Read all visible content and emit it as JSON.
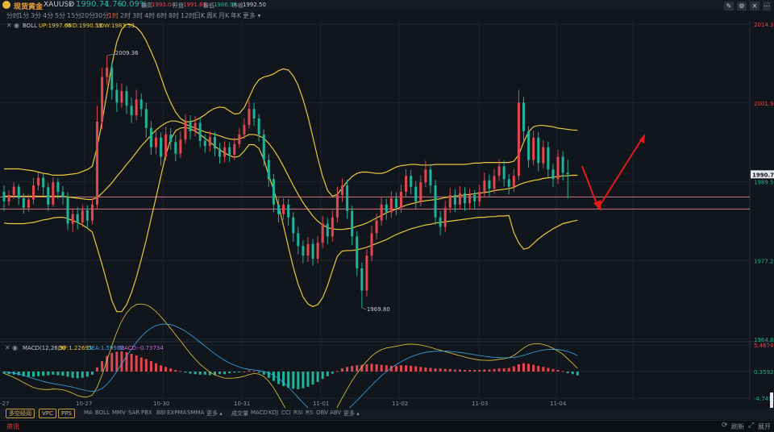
{
  "header": {
    "symbol_name": "现货黄金",
    "symbol_code": "XAUUSD",
    "price": "1990.74",
    "change": "-1.76",
    "change_pct": "-0.09%",
    "high_label": "最高",
    "high": "1993.04",
    "open_label": "开盘",
    "open": "1991.69",
    "low_label": "最低",
    "low": "1986.94",
    "prev_close_label": "昨收",
    "prev_close": "1992.50"
  },
  "timeframes": [
    "分时",
    "1分",
    "3分",
    "4分",
    "5分",
    "15分",
    "20分",
    "30分",
    "1时",
    "2时",
    "3时",
    "4时",
    "6时",
    "8时",
    "12时",
    "日K",
    "周K",
    "月K",
    "年K",
    "更多"
  ],
  "active_timeframe": "1时",
  "boll_legend": {
    "name": "BOLL",
    "up": "UP:1997.65",
    "mid": "MID:1990.59",
    "low": "LOW:1983.53"
  },
  "macd_legend": {
    "name": "MACD(12,26,9)",
    "dif": "DIF:1.22695",
    "dea": "DEA:1.59562",
    "macd": "MACD:-0.73734"
  },
  "indicator_buttons": [
    "MA",
    "BOLL",
    "MMV",
    "SAR",
    "PBX",
    "BBI",
    "EXPMA",
    "SMMA",
    "更多"
  ],
  "sub_indicator_buttons": [
    "成交量",
    "MACD",
    "KDJ",
    "CCI",
    "RSI",
    "RS",
    "OBV",
    "ABV",
    "更多"
  ],
  "pills": [
    "多空经阅",
    "VPC",
    "PPS"
  ],
  "status_left": "资讯",
  "status_right": [
    "刷新",
    "展开"
  ],
  "colors": {
    "up": "#e2474f",
    "down": "#1fb39a",
    "boll": "#e9c93a",
    "accent": "#f05a3c",
    "hline": "#c9787f"
  },
  "chart_data": {
    "type": "candlestick",
    "price_axis_labels": [
      "2014.30",
      "2001.94",
      "1989.58",
      "1977.22",
      "1964.86"
    ],
    "current_price_tag": "1990.74",
    "ylim": [
      1964.86,
      2014.3
    ],
    "x_tick_labels": [
      "10-27",
      "10-30",
      "10-31",
      "11-01",
      "11-02",
      "11-03",
      "11-04"
    ],
    "x_tick_first_partial": "-27",
    "annotations": [
      {
        "text": "2009.36",
        "value": 2009.36
      },
      {
        "text": "1969.80",
        "value": 1969.8
      }
    ],
    "horizontal_levels": [
      1987.2,
      1985.3
    ],
    "macd_axis_labels": [
      "5.46748",
      "0.35920",
      "-4.7490"
    ],
    "candles": [
      [
        1988.0,
        1986.5,
        1989.0,
        1985.0
      ],
      [
        1986.5,
        1987.5,
        1988.2,
        1985.8
      ],
      [
        1987.5,
        1988.8,
        1989.5,
        1986.9
      ],
      [
        1988.8,
        1987.0,
        1989.2,
        1986.0
      ],
      [
        1987.0,
        1985.5,
        1987.8,
        1984.6
      ],
      [
        1985.5,
        1986.8,
        1987.6,
        1984.9
      ],
      [
        1986.8,
        1989.0,
        1990.2,
        1986.0
      ],
      [
        1989.0,
        1990.2,
        1991.0,
        1988.2
      ],
      [
        1990.2,
        1988.7,
        1990.9,
        1987.5
      ],
      [
        1988.7,
        1986.0,
        1989.4,
        1985.0
      ],
      [
        1986.0,
        1989.5,
        1990.3,
        1985.6
      ],
      [
        1989.5,
        1988.0,
        1990.1,
        1986.9
      ],
      [
        1988.0,
        1987.2,
        1988.9,
        1986.0
      ],
      [
        1987.2,
        1983.0,
        1987.9,
        1982.0
      ],
      [
        1983.0,
        1984.5,
        1985.4,
        1981.7
      ],
      [
        1984.5,
        1983.2,
        1985.6,
        1982.1
      ],
      [
        1983.2,
        1985.1,
        1986.0,
        1982.5
      ],
      [
        1985.1,
        1983.5,
        1985.9,
        1982.3
      ],
      [
        1983.5,
        1986.0,
        1987.0,
        1982.9
      ],
      [
        1986.0,
        1999.0,
        2001.5,
        1985.2
      ],
      [
        1999.0,
        2006.0,
        2007.5,
        1997.8
      ],
      [
        2006.0,
        2007.5,
        2009.36,
        2004.8
      ],
      [
        2007.5,
        2004.0,
        2008.2,
        2002.5
      ],
      [
        2004.0,
        2002.0,
        2005.1,
        2000.5
      ],
      [
        2002.0,
        2003.8,
        2005.0,
        2001.2
      ],
      [
        2003.8,
        2001.5,
        2004.6,
        2000.2
      ],
      [
        2001.5,
        2000.0,
        2002.8,
        1998.8
      ],
      [
        2000.0,
        2002.5,
        2004.0,
        1999.2
      ],
      [
        2002.5,
        2001.0,
        2003.4,
        1999.8
      ],
      [
        2001.0,
        1998.0,
        2002.0,
        1996.5
      ],
      [
        1998.0,
        1995.0,
        1999.1,
        1993.8
      ],
      [
        1995.0,
        1996.5,
        1997.8,
        1993.9
      ],
      [
        1996.5,
        1993.5,
        1997.3,
        1992.1
      ],
      [
        1993.5,
        1997.0,
        1998.2,
        1992.9
      ],
      [
        1997.0,
        1995.8,
        1998.0,
        1994.6
      ],
      [
        1995.8,
        1994.0,
        1996.9,
        1992.8
      ],
      [
        1994.0,
        1996.2,
        1997.5,
        1993.3
      ],
      [
        1996.2,
        1999.0,
        2000.2,
        1995.5
      ],
      [
        1999.0,
        1997.5,
        2000.0,
        1996.2
      ],
      [
        1997.5,
        1998.8,
        1999.9,
        1996.7
      ],
      [
        1998.8,
        1996.0,
        1999.6,
        1995.0
      ],
      [
        1996.0,
        1995.2,
        1997.0,
        1994.1
      ],
      [
        1995.2,
        1996.6,
        1997.5,
        1994.3
      ],
      [
        1996.6,
        1994.8,
        1997.4,
        1993.6
      ],
      [
        1994.8,
        1993.5,
        1995.7,
        1992.4
      ],
      [
        1993.5,
        1995.0,
        1995.9,
        1992.6
      ],
      [
        1995.0,
        1993.8,
        1995.8,
        1992.7
      ],
      [
        1993.8,
        1995.5,
        1996.5,
        1993.0
      ],
      [
        1995.5,
        1997.0,
        1998.0,
        1994.9
      ],
      [
        1997.0,
        1998.5,
        1999.6,
        1996.3
      ],
      [
        1998.5,
        2001.0,
        2002.3,
        1997.9
      ],
      [
        2001.0,
        1999.5,
        2002.0,
        1998.3
      ],
      [
        1999.5,
        1997.0,
        2000.2,
        1995.9
      ],
      [
        1997.0,
        1993.0,
        1997.8,
        1992.0
      ],
      [
        1993.0,
        1990.0,
        1993.9,
        1988.8
      ],
      [
        1990.0,
        1986.0,
        1990.8,
        1984.8
      ],
      [
        1986.0,
        1984.5,
        1987.0,
        1983.2
      ],
      [
        1984.5,
        1986.0,
        1987.0,
        1983.6
      ],
      [
        1986.0,
        1984.0,
        1986.9,
        1982.7
      ],
      [
        1984.0,
        1981.5,
        1984.8,
        1980.2
      ],
      [
        1981.5,
        1979.5,
        1982.5,
        1978.2
      ],
      [
        1979.5,
        1978.0,
        1980.4,
        1976.8
      ],
      [
        1978.0,
        1979.8,
        1980.9,
        1977.0
      ],
      [
        1979.8,
        1977.5,
        1980.6,
        1976.4
      ],
      [
        1977.5,
        1980.0,
        1981.1,
        1976.8
      ],
      [
        1980.0,
        1983.0,
        1984.2,
        1979.2
      ],
      [
        1983.0,
        1981.0,
        1983.9,
        1979.8
      ],
      [
        1981.0,
        1984.0,
        1985.1,
        1980.2
      ],
      [
        1984.0,
        1987.5,
        1988.8,
        1983.2
      ],
      [
        1987.5,
        1989.0,
        1990.1,
        1986.4
      ],
      [
        1989.0,
        1985.0,
        1989.9,
        1983.8
      ],
      [
        1985.0,
        1981.0,
        1985.8,
        1979.6
      ],
      [
        1981.0,
        1976.0,
        1981.8,
        1974.8
      ],
      [
        1976.0,
        1972.5,
        1976.9,
        1969.8
      ],
      [
        1972.5,
        1978.0,
        1979.0,
        1971.6
      ],
      [
        1978.0,
        1981.5,
        1982.7,
        1977.1
      ],
      [
        1981.5,
        1983.5,
        1984.6,
        1980.5
      ],
      [
        1983.5,
        1986.0,
        1987.1,
        1982.7
      ],
      [
        1986.0,
        1984.8,
        1986.9,
        1983.6
      ],
      [
        1984.8,
        1987.0,
        1988.1,
        1983.9
      ],
      [
        1987.0,
        1985.5,
        1987.9,
        1984.3
      ],
      [
        1985.5,
        1988.0,
        1989.1,
        1984.7
      ],
      [
        1988.0,
        1990.5,
        1991.6,
        1987.2
      ],
      [
        1990.5,
        1988.8,
        1991.4,
        1987.6
      ],
      [
        1988.8,
        1986.5,
        1989.7,
        1985.3
      ],
      [
        1986.5,
        1989.5,
        1990.6,
        1985.7
      ],
      [
        1989.5,
        1991.5,
        1992.9,
        1988.7
      ],
      [
        1991.5,
        1989.0,
        1992.4,
        1987.8
      ],
      [
        1989.0,
        1984.0,
        1989.9,
        1982.8
      ],
      [
        1984.0,
        1982.5,
        1985.0,
        1981.2
      ],
      [
        1982.5,
        1985.5,
        1986.6,
        1981.7
      ],
      [
        1985.5,
        1987.5,
        1988.6,
        1984.7
      ],
      [
        1987.5,
        1986.0,
        1988.4,
        1984.8
      ],
      [
        1986.0,
        1987.8,
        1988.9,
        1985.2
      ],
      [
        1987.8,
        1986.2,
        1988.7,
        1985.0
      ],
      [
        1986.2,
        1987.5,
        1988.5,
        1985.4
      ],
      [
        1987.5,
        1986.5,
        1988.3,
        1985.3
      ],
      [
        1986.5,
        1988.0,
        1989.1,
        1985.7
      ],
      [
        1988.0,
        1989.8,
        1991.0,
        1987.2
      ],
      [
        1989.8,
        1988.5,
        1990.7,
        1987.3
      ],
      [
        1988.5,
        1990.5,
        1991.6,
        1987.7
      ],
      [
        1990.5,
        1992.0,
        1993.1,
        1989.7
      ],
      [
        1992.0,
        1990.0,
        1992.9,
        1988.8
      ],
      [
        1990.0,
        1988.8,
        1990.8,
        1987.6
      ],
      [
        1988.8,
        1990.5,
        1991.6,
        1988.0
      ],
      [
        1990.5,
        2002.0,
        2004.0,
        1989.8
      ],
      [
        2002.0,
        1997.5,
        2002.9,
        1995.9
      ],
      [
        1997.5,
        1993.0,
        1998.3,
        1991.8
      ],
      [
        1993.0,
        1996.5,
        1997.6,
        1992.2
      ],
      [
        1996.5,
        1992.5,
        1997.4,
        1991.2
      ],
      [
        1992.5,
        1995.0,
        1996.1,
        1991.7
      ],
      [
        1995.0,
        1991.5,
        1995.9,
        1990.3
      ],
      [
        1991.5,
        1990.0,
        1992.4,
        1988.8
      ],
      [
        1990.0,
        1993.5,
        1994.6,
        1989.2
      ],
      [
        1993.5,
        1991.0,
        1994.4,
        1989.8
      ],
      [
        1991.0,
        1990.74,
        1993.04,
        1986.94
      ]
    ],
    "boll_upper": [
      1991.6,
      1991.6,
      1991.6,
      1991.6,
      1991.5,
      1991.4,
      1991.3,
      1991.1,
      1990.9,
      1990.8,
      1990.6,
      1990.6,
      1990.6,
      1990.7,
      1990.8,
      1990.9,
      1991.2,
      1991.5,
      1992.0,
      1995.0,
      1999.0,
      2003.5,
      2008.0,
      2011.5,
      2013.5,
      2014.3,
      2014.2,
      2013.8,
      2013.0,
      2011.7,
      2010.0,
      2008.2,
      2006.0,
      2003.8,
      2002.0,
      2000.5,
      1999.5,
      1999.0,
      1999.0,
      1999.2,
      1999.6,
      2000.1,
      2000.7,
      2001.1,
      2001.3,
      2001.2,
      2000.7,
      2000.2,
      2000.3,
      2001.2,
      2002.8,
      2004.5,
      2005.6,
      2006.0,
      2006.2,
      2006.5,
      2007.0,
      2007.3,
      2007.1,
      2006.2,
      2004.7,
      2002.5,
      1999.8,
      1996.6,
      1993.3,
      1990.4,
      1988.2,
      1987.3,
      1987.6,
      1988.6,
      1989.6,
      1990.4,
      1990.9,
      1991.1,
      1991.1,
      1991.0,
      1990.9,
      1990.9,
      1991.1,
      1991.5,
      1991.9,
      1992.1,
      1992.2,
      1992.3,
      1992.3,
      1992.2,
      1992.2,
      1992.2,
      1992.3,
      1992.3,
      1992.3,
      1992.3,
      1992.3,
      1992.3,
      1992.3,
      1992.4,
      1992.5,
      1992.5,
      1992.6,
      1992.6,
      1992.6,
      1992.6,
      1992.6,
      1992.6,
      1992.8,
      1993.8,
      1995.8,
      1997.4,
      1998.2,
      1998.4,
      1998.4,
      1998.3,
      1998.2,
      1998.0,
      1997.9,
      1997.8,
      1997.7,
      1997.65
    ],
    "boll_middle": [
      1987.3,
      1987.3,
      1987.3,
      1987.3,
      1987.3,
      1987.3,
      1987.3,
      1987.3,
      1987.3,
      1987.3,
      1987.3,
      1987.3,
      1987.3,
      1987.2,
      1987.1,
      1987.0,
      1986.9,
      1986.8,
      1986.8,
      1987.1,
      1987.8,
      1988.6,
      1989.4,
      1990.4,
      1991.3,
      1992.3,
      1993.2,
      1994.2,
      1995.2,
      1996.0,
      1996.9,
      1997.7,
      1998.3,
      1998.8,
      1999.1,
      1999.1,
      1998.9,
      1998.6,
      1998.3,
      1998.0,
      1997.7,
      1997.4,
      1997.2,
      1997.0,
      1996.8,
      1996.5,
      1996.3,
      1996.2,
      1996.3,
      1996.6,
      1997.0,
      1997.0,
      1996.8,
      1996.4,
      1995.6,
      1994.6,
      1993.4,
      1992.0,
      1990.5,
      1989.0,
      1987.6,
      1986.3,
      1985.2,
      1984.2,
      1983.4,
      1982.8,
      1982.4,
      1982.2,
      1982.1,
      1982.1,
      1982.2,
      1982.3,
      1982.6,
      1982.8,
      1983.1,
      1983.5,
      1983.9,
      1984.3,
      1984.7,
      1985.0,
      1985.3,
      1985.6,
      1985.9,
      1986.1,
      1986.3,
      1986.5,
      1986.6,
      1986.7,
      1986.8,
      1986.9,
      1987.1,
      1987.2,
      1987.3,
      1987.4,
      1987.5,
      1987.6,
      1987.7,
      1987.8,
      1987.9,
      1988.0,
      1988.2,
      1988.3,
      1988.4,
      1988.5,
      1988.7,
      1989.1,
      1989.4,
      1989.6,
      1989.8,
      1989.9,
      1990.1,
      1990.2,
      1990.3,
      1990.4,
      1990.5,
      1990.5,
      1990.6,
      1990.59
    ],
    "boll_lower": [
      1983.1,
      1983.0,
      1983.0,
      1983.0,
      1983.0,
      1983.1,
      1983.2,
      1983.4,
      1983.6,
      1983.7,
      1983.9,
      1984.0,
      1984.0,
      1983.8,
      1983.5,
      1983.2,
      1982.8,
      1982.3,
      1981.7,
      1979.2,
      1976.6,
      1973.8,
      1970.9,
      1969.2,
      1969.2,
      1970.3,
      1972.2,
      1974.6,
      1977.4,
      1980.4,
      1983.8,
      1987.1,
      1990.5,
      1993.8,
      1996.2,
      1997.6,
      1998.0,
      1998.1,
      1997.9,
      1997.5,
      1997.0,
      1996.4,
      1995.8,
      1995.2,
      1994.6,
      1994.1,
      1993.7,
      1993.4,
      1993.6,
      1994.4,
      1995.4,
      1995.4,
      1994.8,
      1993.1,
      1990.6,
      1988.3,
      1985.8,
      1982.7,
      1979.4,
      1976.2,
      1973.5,
      1971.5,
      1970.4,
      1970.0,
      1970.3,
      1971.4,
      1973.3,
      1975.7,
      1977.9,
      1978.7,
      1978.8,
      1978.8,
      1978.9,
      1979.1,
      1979.3,
      1979.6,
      1979.9,
      1980.2,
      1980.5,
      1980.9,
      1981.3,
      1981.6,
      1981.9,
      1982.2,
      1982.4,
      1982.6,
      1982.8,
      1982.9,
      1983.1,
      1983.2,
      1983.3,
      1983.4,
      1983.5,
      1983.6,
      1983.7,
      1983.8,
      1983.9,
      1984.0,
      1984.0,
      1984.1,
      1984.1,
      1984.2,
      1984.2,
      1984.3,
      1981.6,
      1980.0,
      1979.0,
      1979.2,
      1979.9,
      1980.6,
      1981.2,
      1981.7,
      1982.2,
      1982.6,
      1983.0,
      1983.2,
      1983.4,
      1983.53
    ],
    "macd_hist": [
      -0.4,
      -0.5,
      -0.6,
      -0.7,
      -0.9,
      -1.0,
      -1.0,
      -0.9,
      -0.8,
      -0.7,
      -0.6,
      -0.7,
      -0.8,
      -1.0,
      -1.2,
      -1.3,
      -1.2,
      -1.0,
      -0.6,
      0.8,
      2.0,
      3.0,
      3.6,
      3.8,
      3.9,
      3.7,
      3.4,
      3.1,
      2.7,
      2.4,
      2.0,
      1.6,
      1.2,
      0.9,
      0.6,
      0.3,
      0.1,
      -0.2,
      -0.4,
      -0.5,
      -0.6,
      -0.6,
      -0.7,
      -0.6,
      -0.5,
      -0.5,
      -0.3,
      -0.2,
      -0.1,
      0.0,
      0.2,
      0.1,
      -0.2,
      -0.6,
      -1.2,
      -1.8,
      -2.4,
      -2.8,
      -3.1,
      -3.3,
      -3.4,
      -3.2,
      -2.9,
      -2.5,
      -2.0,
      -1.4,
      -0.9,
      -0.4,
      0.1,
      0.6,
      0.9,
      1.1,
      1.2,
      1.3,
      1.4,
      1.5,
      1.4,
      1.3,
      1.2,
      1.1,
      1.1,
      1.2,
      1.2,
      1.1,
      1.0,
      0.9,
      0.8,
      0.7,
      0.6,
      0.6,
      0.5,
      0.5,
      0.4,
      0.4,
      0.3,
      0.3,
      0.3,
      0.3,
      0.4,
      0.4,
      0.5,
      0.6,
      0.6,
      0.7,
      1.0,
      1.4,
      1.6,
      1.5,
      1.3,
      1.1,
      0.9,
      0.7,
      0.5,
      0.3,
      0.1,
      -0.3,
      -0.5,
      -0.74
    ]
  }
}
